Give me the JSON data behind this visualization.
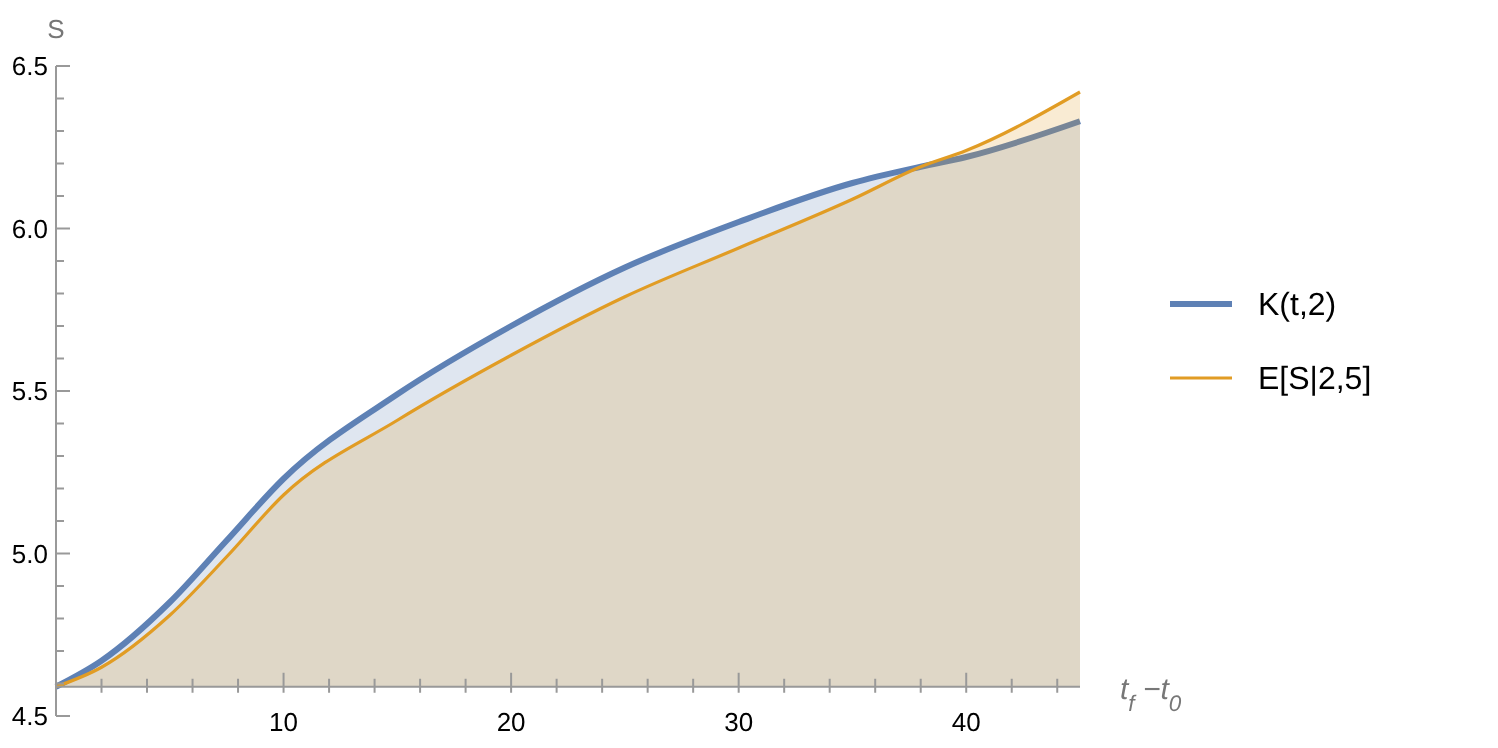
{
  "chart_data": {
    "type": "area",
    "xlabel": "t$_{f}$ −t$_{0}$",
    "ylabel": "S",
    "x": [
      0,
      2,
      5,
      7.5,
      10,
      15,
      20,
      25,
      30,
      35,
      38,
      40,
      45
    ],
    "series": [
      {
        "name": "K(t,2)",
        "color": "#5e81b5",
        "values": [
          4.59,
          4.67,
          4.85,
          5.04,
          5.23,
          5.49,
          5.7,
          5.88,
          6.02,
          6.14,
          6.19,
          6.22,
          6.33
        ]
      },
      {
        "name": "E[S|2,5]",
        "color": "#e19c24",
        "values": [
          4.59,
          4.65,
          4.81,
          4.99,
          5.18,
          5.41,
          5.61,
          5.79,
          5.94,
          6.09,
          6.19,
          6.24,
          6.42
        ]
      }
    ],
    "xlim": [
      0,
      45
    ],
    "ylim": [
      4.5,
      6.5
    ],
    "xticks": [
      {
        "value": 2,
        "label": null
      },
      {
        "value": 4,
        "label": null
      },
      {
        "value": 6,
        "label": null
      },
      {
        "value": 8,
        "label": null
      },
      10,
      {
        "value": 12,
        "label": null
      },
      {
        "value": 14,
        "label": null
      },
      {
        "value": 16,
        "label": null
      },
      {
        "value": 18,
        "label": null
      },
      20,
      {
        "value": 22,
        "label": null
      },
      {
        "value": 24,
        "label": null
      },
      {
        "value": 26,
        "label": null
      },
      {
        "value": 28,
        "label": null
      },
      30,
      {
        "value": 32,
        "label": null
      },
      {
        "value": 34,
        "label": null
      },
      {
        "value": 36,
        "label": null
      },
      {
        "value": 38,
        "label": null
      },
      40,
      {
        "value": 42,
        "label": null
      },
      {
        "value": 44,
        "label": null
      }
    ],
    "yticks": [
      {
        "value": 4.5,
        "label": "4.5"
      },
      {
        "value": 4.6,
        "label": null
      },
      {
        "value": 4.7,
        "label": null
      },
      {
        "value": 4.8,
        "label": null
      },
      {
        "value": 4.9,
        "label": null
      },
      {
        "value": 5.0,
        "label": "5.0"
      },
      {
        "value": 5.1,
        "label": null
      },
      {
        "value": 5.2,
        "label": null
      },
      {
        "value": 5.3,
        "label": null
      },
      {
        "value": 5.4,
        "label": null
      },
      {
        "value": 5.5,
        "label": "5.5"
      },
      {
        "value": 5.6,
        "label": null
      },
      {
        "value": 5.7,
        "label": null
      },
      {
        "value": 5.8,
        "label": null
      },
      {
        "value": 5.9,
        "label": null
      },
      {
        "value": 6.0,
        "label": "6.0"
      },
      {
        "value": 6.1,
        "label": null
      },
      {
        "value": 6.2,
        "label": null
      },
      {
        "value": 6.3,
        "label": null
      },
      {
        "value": 6.4,
        "label": null
      },
      {
        "value": 6.5,
        "label": "6.5"
      }
    ],
    "legend": "right",
    "grid": false
  }
}
